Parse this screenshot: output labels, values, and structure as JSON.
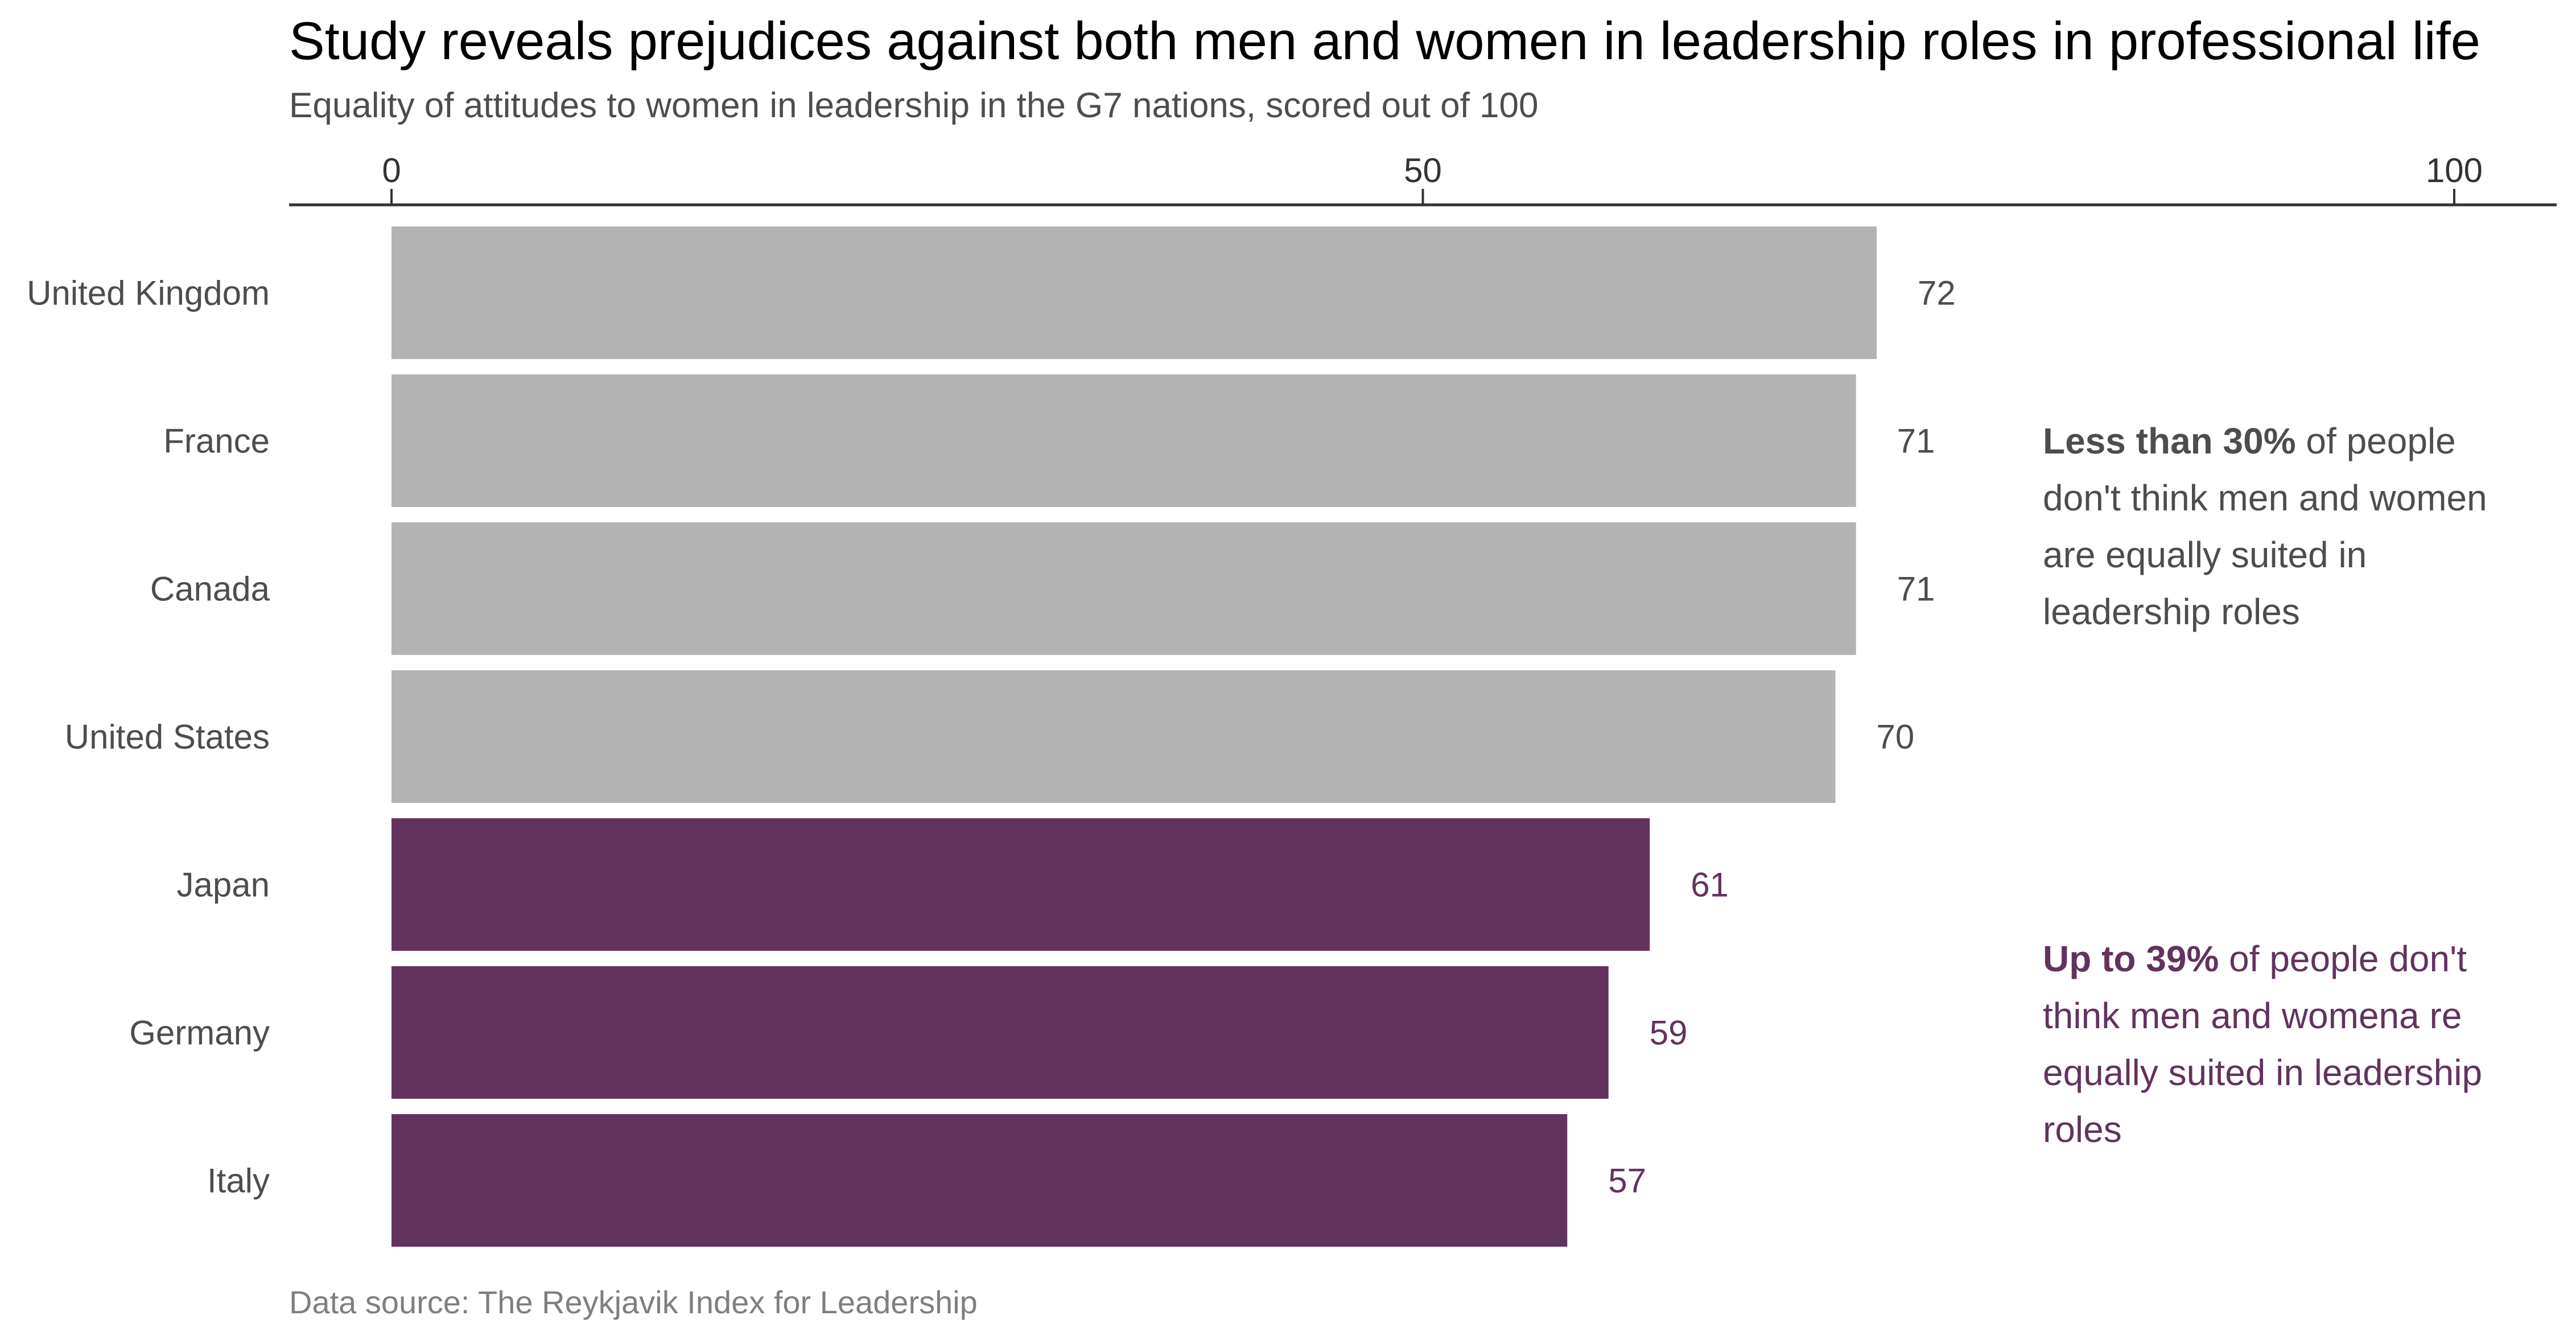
{
  "chart_data": {
    "type": "bar",
    "orientation": "horizontal",
    "title": "Study reveals prejudices against both men and women in leadership roles in professional life",
    "subtitle": "Equality of attitudes to women in leadership in the G7 nations, scored out of 100",
    "source": "Data source: The Reykjavik Index for Leadership",
    "categories": [
      "United Kingdom",
      "France",
      "Canada",
      "United States",
      "Japan",
      "Germany",
      "Italy"
    ],
    "values": [
      72,
      71,
      71,
      70,
      61,
      59,
      57
    ],
    "value_labels": [
      "72",
      "71",
      "71",
      "70",
      "61",
      "59",
      "57"
    ],
    "bar_colors": [
      "#b3b3b3",
      "#b3b3b3",
      "#b3b3b3",
      "#b3b3b3",
      "#62335e",
      "#62335e",
      "#62335e"
    ],
    "label_colors": [
      "#4d4d4d",
      "#4d4d4d",
      "#4d4d4d",
      "#4d4d4d",
      "#62335e",
      "#62335e",
      "#62335e"
    ],
    "xlim": [
      0,
      100
    ],
    "xticks": [
      0,
      50,
      100
    ],
    "xtick_labels": [
      "0",
      "50",
      "100"
    ],
    "axis_position": "top",
    "grid": false,
    "legend": "none",
    "xlabel": "",
    "ylabel": "",
    "annotations": [
      {
        "bold": "Less than 30%",
        "rest": " of people don't think men and women are equally suited in leadership roles",
        "color": "#4d4d4d",
        "applies_to": [
          "United Kingdom",
          "France",
          "Canada",
          "United States"
        ]
      },
      {
        "bold": "Up to 39%",
        "rest": " of people don't think men and womena re equally suited in leadership roles",
        "color": "#62335e",
        "applies_to": [
          "Japan",
          "Germany",
          "Italy"
        ]
      }
    ]
  }
}
